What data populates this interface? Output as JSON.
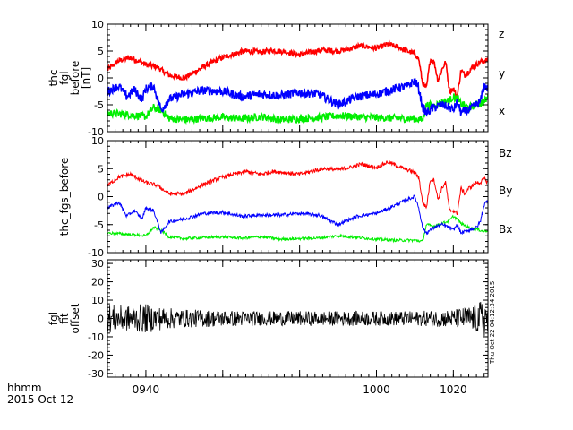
{
  "footer": {
    "line1": "hhmm",
    "line2": "2015 Oct 12"
  },
  "timestamp": "Thu Oct 22 04:12:34 2015",
  "chart_data": [
    {
      "type": "line",
      "ylabel_lines": [
        "thc",
        "fgl",
        "before",
        "[nT]"
      ],
      "ylim": [
        -10,
        10
      ],
      "yticks": [
        -10,
        -5,
        0,
        5,
        10
      ],
      "xlim": [
        930,
        1029
      ],
      "xticks": [
        "0940",
        "1000",
        "1020"
      ],
      "legend": "right",
      "series": [
        {
          "name": "z",
          "color": "#ff0000",
          "noise": 0.5,
          "x": [
            930,
            933,
            936,
            940,
            943,
            946,
            950,
            953,
            956,
            960,
            963,
            966,
            970,
            973,
            976,
            980,
            983,
            986,
            990,
            993,
            996,
            1000,
            1003,
            1006,
            1008,
            1010,
            1011,
            1012,
            1013,
            1014,
            1015,
            1016,
            1017,
            1018,
            1019,
            1020,
            1021,
            1022,
            1023,
            1024,
            1025,
            1026,
            1027,
            1028,
            1029
          ],
          "values": [
            1.5,
            3.2,
            3.8,
            2.5,
            2.0,
            0.5,
            0.0,
            1.2,
            2.5,
            3.8,
            4.5,
            5.0,
            4.8,
            5.1,
            4.9,
            4.3,
            4.8,
            5.2,
            5.0,
            5.4,
            6.0,
            5.5,
            6.3,
            5.6,
            5.0,
            4.5,
            3.5,
            -1.0,
            -2.0,
            3.5,
            3.0,
            -0.5,
            1.5,
            3.0,
            -2.5,
            -2.0,
            -3.5,
            1.5,
            0.5,
            1.2,
            2.0,
            2.5,
            3.0,
            3.2,
            3.3
          ]
        },
        {
          "name": "y",
          "color": "#00ee00",
          "noise": 0.7,
          "x": [
            930,
            935,
            940,
            942,
            944,
            946,
            950,
            955,
            960,
            965,
            970,
            975,
            980,
            985,
            990,
            995,
            1000,
            1005,
            1010,
            1012,
            1013,
            1015,
            1017,
            1019,
            1020,
            1021,
            1022,
            1024,
            1026,
            1028,
            1029
          ],
          "values": [
            -6.5,
            -6.8,
            -7.2,
            -5.5,
            -6.0,
            -7.5,
            -7.8,
            -7.5,
            -7.3,
            -7.6,
            -7.2,
            -7.8,
            -7.6,
            -7.4,
            -7.0,
            -7.2,
            -7.4,
            -7.5,
            -7.6,
            -7.8,
            -5.0,
            -5.2,
            -4.5,
            -4.2,
            -3.5,
            -4.0,
            -4.8,
            -5.5,
            -5.0,
            -4.5,
            -3.5
          ]
        },
        {
          "name": "x",
          "color": "#0000ff",
          "noise": 0.8,
          "x": [
            930,
            933,
            935,
            937,
            939,
            940,
            942,
            944,
            946,
            950,
            955,
            960,
            965,
            970,
            975,
            980,
            985,
            990,
            995,
            1000,
            1005,
            1008,
            1010,
            1011,
            1012,
            1013,
            1015,
            1017,
            1019,
            1020,
            1021,
            1022,
            1024,
            1026,
            1027,
            1028,
            1029
          ],
          "values": [
            -2.5,
            -1.5,
            -3.5,
            -2.2,
            -4.0,
            -2.0,
            -1.5,
            -6.0,
            -4.0,
            -3.0,
            -2.3,
            -2.5,
            -3.5,
            -3.0,
            -3.3,
            -2.7,
            -3.0,
            -5.0,
            -3.5,
            -3.0,
            -2.0,
            -1.5,
            -0.5,
            -2.0,
            -5.5,
            -6.5,
            -5.5,
            -5.0,
            -5.5,
            -6.0,
            -4.5,
            -6.5,
            -6.0,
            -5.0,
            -4.5,
            -1.5,
            -2.0
          ]
        }
      ]
    },
    {
      "type": "line",
      "ylabel_lines": [
        "thc_fgs_before"
      ],
      "ylim": [
        -10,
        10
      ],
      "yticks": [
        -10,
        -5,
        0,
        5,
        10
      ],
      "xlim": [
        930,
        1029
      ],
      "xticks": [
        "0940",
        "1000",
        "1020"
      ],
      "legend": "right",
      "series": [
        {
          "name": "Bz",
          "color": "#ff0000",
          "noise": 0.35,
          "x": [
            930,
            933,
            936,
            940,
            943,
            946,
            950,
            953,
            956,
            960,
            963,
            966,
            970,
            973,
            976,
            980,
            983,
            986,
            990,
            993,
            996,
            1000,
            1003,
            1006,
            1008,
            1010,
            1011,
            1012,
            1013,
            1014,
            1015,
            1016,
            1017,
            1018,
            1019,
            1020,
            1021,
            1022,
            1023,
            1024,
            1025,
            1026,
            1027,
            1028,
            1029
          ],
          "values": [
            2.0,
            3.5,
            4.0,
            2.5,
            2.0,
            0.5,
            0.5,
            1.5,
            2.5,
            3.5,
            4.0,
            4.5,
            4.0,
            4.5,
            4.3,
            4.0,
            4.5,
            5.0,
            4.8,
            5.2,
            5.8,
            5.2,
            6.2,
            5.3,
            4.8,
            4.3,
            3.5,
            -1.0,
            -2.0,
            3.0,
            3.0,
            -0.5,
            1.5,
            2.5,
            -2.5,
            -2.5,
            -3.0,
            1.5,
            0.5,
            1.5,
            2.0,
            2.5,
            2.5,
            3.2,
            2.5
          ]
        },
        {
          "name": "By",
          "color": "#00ee00",
          "noise": 0.25,
          "x": [
            930,
            935,
            940,
            942,
            944,
            946,
            950,
            955,
            960,
            965,
            970,
            975,
            980,
            985,
            990,
            995,
            1000,
            1005,
            1010,
            1012,
            1013,
            1015,
            1017,
            1019,
            1020,
            1021,
            1022,
            1024,
            1026,
            1028,
            1029
          ],
          "values": [
            -6.5,
            -6.7,
            -7.0,
            -5.5,
            -6.0,
            -7.2,
            -7.5,
            -7.3,
            -7.2,
            -7.4,
            -7.2,
            -7.6,
            -7.5,
            -7.4,
            -7.0,
            -7.3,
            -7.6,
            -7.8,
            -7.8,
            -8.0,
            -5.0,
            -5.3,
            -4.8,
            -4.3,
            -3.5,
            -4.0,
            -4.8,
            -5.5,
            -5.8,
            -6.2,
            -6.0
          ]
        },
        {
          "name": "Bx",
          "color": "#0000ff",
          "noise": 0.3,
          "x": [
            930,
            933,
            935,
            937,
            939,
            940,
            942,
            944,
            946,
            950,
            955,
            960,
            965,
            970,
            975,
            980,
            985,
            990,
            995,
            1000,
            1005,
            1008,
            1010,
            1011,
            1012,
            1013,
            1015,
            1017,
            1019,
            1020,
            1021,
            1022,
            1024,
            1026,
            1027,
            1028,
            1029
          ],
          "values": [
            -2.0,
            -1.0,
            -3.5,
            -2.5,
            -4.0,
            -2.0,
            -2.5,
            -6.5,
            -4.5,
            -4.0,
            -3.0,
            -2.8,
            -3.5,
            -3.3,
            -3.3,
            -3.0,
            -3.3,
            -5.0,
            -3.5,
            -3.0,
            -1.5,
            -0.5,
            0.0,
            -2.0,
            -5.5,
            -6.5,
            -5.5,
            -5.0,
            -5.5,
            -6.0,
            -5.0,
            -6.5,
            -6.0,
            -5.5,
            -4.5,
            -1.5,
            -0.5
          ]
        }
      ]
    },
    {
      "type": "line",
      "ylabel_lines": [
        "fgl",
        "fit",
        "offset"
      ],
      "ylim": [
        -32,
        32
      ],
      "yticks": [
        -30,
        -20,
        -10,
        0,
        10,
        20,
        30
      ],
      "xlim": [
        930,
        1029
      ],
      "xticks": [
        "0940",
        "1000",
        "1020"
      ],
      "series": [
        {
          "name": "",
          "color": "#000000",
          "noise": 0,
          "x": [
            930,
            935,
            940,
            945,
            950,
            960,
            970,
            980,
            990,
            1000,
            1010,
            1020,
            1025,
            1029
          ],
          "values": [
            0,
            0,
            0,
            0,
            0,
            0,
            0,
            0,
            0,
            0,
            0,
            0,
            0,
            0
          ],
          "envelope": [
            8,
            7,
            8,
            6,
            5,
            4.5,
            4,
            4,
            4,
            4,
            4,
            5,
            7,
            12
          ]
        }
      ]
    }
  ]
}
